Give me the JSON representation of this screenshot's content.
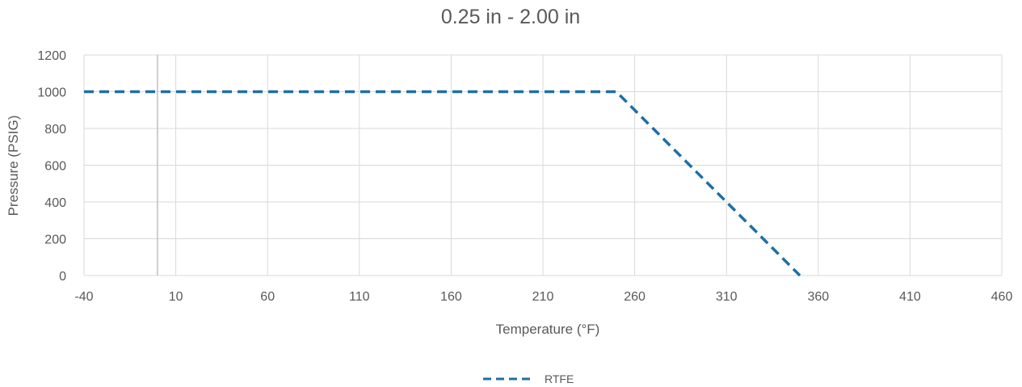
{
  "chart_data": {
    "type": "line",
    "title": "0.25 in - 2.00 in",
    "xlabel": "Temperature (°F)",
    "ylabel": "Pressure (PSIG)",
    "xlim": [
      -40,
      460
    ],
    "ylim": [
      0,
      1200
    ],
    "x_ticks": [
      -40,
      10,
      60,
      110,
      160,
      210,
      260,
      310,
      360,
      410,
      460
    ],
    "y_ticks": [
      0,
      200,
      400,
      600,
      800,
      1000,
      1200
    ],
    "grid": true,
    "reference_line_x": 0,
    "legend_position": "bottom",
    "series": [
      {
        "name": "RTFE",
        "color": "#1f6fa3",
        "style": "dashed",
        "points": [
          [
            -40,
            1000
          ],
          [
            250,
            1000
          ],
          [
            350,
            0
          ]
        ]
      }
    ]
  }
}
